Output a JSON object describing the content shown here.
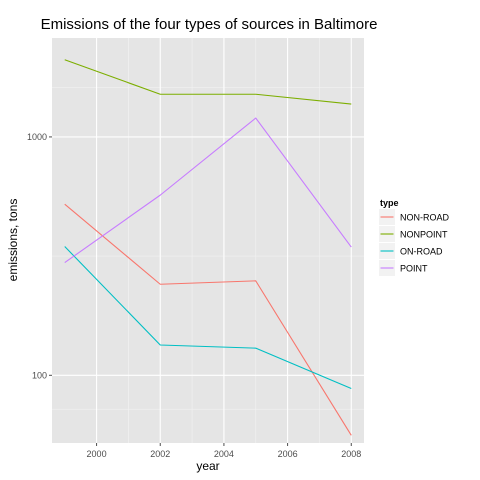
{
  "chart_data": {
    "type": "line",
    "title": "Emissions of the four types of sources in Baltimore",
    "xlabel": "year",
    "ylabel": "emissions, tons",
    "x": [
      1999,
      2002,
      2005,
      2008
    ],
    "xlim": [
      1998.6,
      2008.4
    ],
    "ylim": [
      52,
      2600
    ],
    "yscale": "log",
    "xticks": [
      2000,
      2002,
      2004,
      2006,
      2008
    ],
    "yticks": [
      100,
      1000
    ],
    "xtick_labels": [
      "2000",
      "2002",
      "2004",
      "2006",
      "2008"
    ],
    "ytick_labels": [
      "100",
      "1000"
    ],
    "grid": true,
    "legend": {
      "title": "type",
      "position": "right"
    },
    "series": [
      {
        "name": "NON-ROAD",
        "color": "#F8766D",
        "values": [
          522,
          241,
          249,
          56
        ]
      },
      {
        "name": "NONPOINT",
        "color": "#7CAE00",
        "values": [
          2108,
          1510,
          1510,
          1374
        ]
      },
      {
        "name": "ON-ROAD",
        "color": "#00BFC4",
        "values": [
          347,
          134,
          130,
          88
        ]
      },
      {
        "name": "POINT",
        "color": "#C77CFF",
        "values": [
          297,
          570,
          1200,
          345
        ]
      }
    ]
  }
}
